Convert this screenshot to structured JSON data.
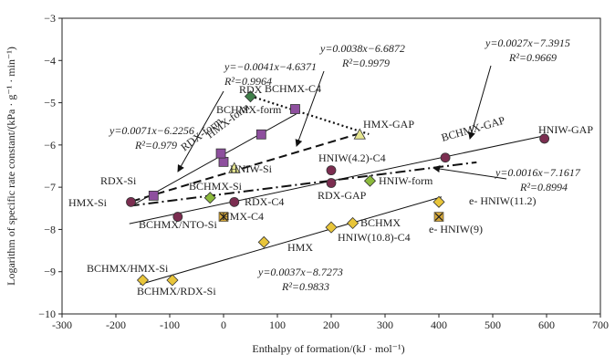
{
  "chart_data": {
    "type": "scatter",
    "xlabel": "Enthalpy of formation/(kJ · mol⁻¹)",
    "ylabel": "Logarithm of specific rate constant/(kPa · g⁻¹ · min⁻¹)",
    "xlim": [
      -300,
      700
    ],
    "ylim": [
      -10,
      -3
    ],
    "xticks": [
      -300,
      -200,
      -100,
      0,
      100,
      200,
      300,
      400,
      500,
      600,
      700
    ],
    "yticks": [
      -10,
      -9,
      -8,
      -7,
      -6,
      -5,
      -4,
      -3
    ],
    "grid": false,
    "colors": {
      "purple_square": "#8e4f9e",
      "circle": "#7b2d50",
      "green_diamond": "#8cba3c",
      "dark_green_diamond": "#3f7f4a",
      "yellow_diamond": "#e8c53a",
      "triangle": "#e6e690",
      "x_marker": "#d6a83a"
    },
    "points": [
      {
        "label": "RDX",
        "x": 70,
        "y": -5.75,
        "marker": "square",
        "color": "#8e4f9e"
      },
      {
        "label": "BCHMX-form",
        "x": 133,
        "y": -5.15,
        "marker": "square",
        "color": "#8e4f9e"
      },
      {
        "label": "HMX-form",
        "x": 0,
        "y": -6.4,
        "marker": "square",
        "color": "#8e4f9e"
      },
      {
        "label": "RDX-form",
        "x": -5,
        "y": -6.2,
        "marker": "square",
        "color": "#8e4f9e"
      },
      {
        "label": "RDX-Si",
        "x": -130,
        "y": -7.2,
        "marker": "square",
        "color": "#8e4f9e"
      },
      {
        "label": "BCHMX-C4",
        "x": 50,
        "y": -4.85,
        "marker": "diamond",
        "color": "#3f7f4a"
      },
      {
        "label": "HNIW-Si",
        "x": 20,
        "y": -6.55,
        "marker": "triangle",
        "color": "#e6e690"
      },
      {
        "label": "HMX-GAP",
        "x": 253,
        "y": -5.75,
        "marker": "triangle",
        "color": "#e6e690"
      },
      {
        "label": "HMX-Si",
        "x": -172,
        "y": -7.35,
        "marker": "circle",
        "color": "#7b2d50"
      },
      {
        "label": "BCHMX-Si",
        "x": -25,
        "y": -7.25,
        "marker": "diamond",
        "color": "#8cba3c"
      },
      {
        "label": "RDX-C4",
        "x": 20,
        "y": -7.35,
        "marker": "circle",
        "color": "#7b2d50"
      },
      {
        "label": "BCHMX/NTO-Si",
        "x": -85,
        "y": -7.7,
        "marker": "circle",
        "color": "#7b2d50"
      },
      {
        "label": "HMX-C4",
        "x": 0,
        "y": -7.7,
        "marker": "x",
        "color": "#d6a83a"
      },
      {
        "label": "HNIW(4.2)-C4",
        "x": 200,
        "y": -6.6,
        "marker": "circle",
        "color": "#7b2d50"
      },
      {
        "label": "RDX-GAP",
        "x": 200,
        "y": -6.9,
        "marker": "circle",
        "color": "#7b2d50"
      },
      {
        "label": "HNIW-form",
        "x": 272,
        "y": -6.85,
        "marker": "diamond",
        "color": "#8cba3c"
      },
      {
        "label": "BCHMX-GAP",
        "x": 412,
        "y": -6.3,
        "marker": "circle",
        "color": "#7b2d50"
      },
      {
        "label": "HNIW-GAP",
        "x": 596,
        "y": -5.85,
        "marker": "circle",
        "color": "#7b2d50"
      },
      {
        "label": "HMX",
        "x": 75,
        "y": -8.3,
        "marker": "diamond",
        "color": "#e8c53a"
      },
      {
        "label": "BCHMX",
        "x": 240,
        "y": -7.85,
        "marker": "diamond",
        "color": "#e8c53a"
      },
      {
        "label": "HNIW(10.8)-C4",
        "x": 200,
        "y": -7.95,
        "marker": "diamond",
        "color": "#e8c53a"
      },
      {
        "label": "e- HNIW(11.2)",
        "x": 400,
        "y": -7.35,
        "marker": "diamond",
        "color": "#e8c53a"
      },
      {
        "label": "e- HNIW(9)",
        "x": 400,
        "y": -7.7,
        "marker": "x",
        "color": "#d6a83a"
      },
      {
        "label": "BCHMX/HMX-Si",
        "x": -150,
        "y": -9.2,
        "marker": "diamond",
        "color": "#e8c53a"
      },
      {
        "label": "BCHMX/RDX-Si",
        "x": -95,
        "y": -9.2,
        "marker": "diamond",
        "color": "#e8c53a"
      }
    ],
    "fits": [
      {
        "equation": "y=−0.0041x−4.6371",
        "r2": "R²=0.9964",
        "slope": -0.0041,
        "intercept": -4.6371,
        "x_range": [
          50,
          270
        ],
        "dash": "2,3",
        "width": 2.2
      },
      {
        "equation": "y=0.0071x−6.2256",
        "r2": "R²=0.979",
        "slope": 0.0071,
        "intercept": -6.2256,
        "x_range": [
          -170,
          135
        ],
        "dash": "",
        "width": 1
      },
      {
        "equation": "y=0.0038x−6.6872",
        "r2": "R²=0.9979",
        "slope": 0.0038,
        "intercept": -6.6872,
        "x_range": [
          -170,
          262
        ],
        "dash": "9,5",
        "width": 2
      },
      {
        "equation": "y=0.0027x−7.3915",
        "r2": "R²=0.9669",
        "slope": 0.0027,
        "intercept": -7.3915,
        "x_range": [
          -175,
          600
        ],
        "dash": "",
        "width": 1
      },
      {
        "equation": "y=0.0016x−7.1617",
        "r2": "R²=0.8994",
        "slope": 0.0016,
        "intercept": -7.1617,
        "x_range": [
          -175,
          470
        ],
        "dash": "11,4,2,4",
        "width": 2
      },
      {
        "equation": "y=0.0037x−8.7273",
        "r2": "R²=0.9833",
        "slope": 0.0037,
        "intercept": -8.7273,
        "x_range": [
          -155,
          405
        ],
        "dash": "",
        "width": 1
      }
    ]
  }
}
